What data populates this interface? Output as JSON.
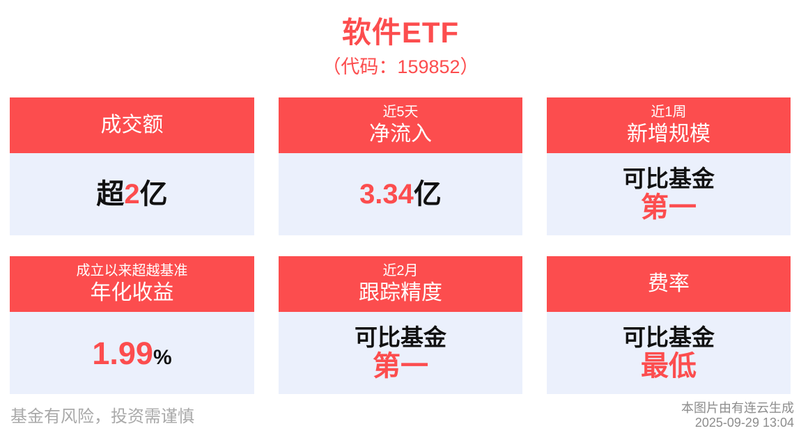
{
  "colors": {
    "accent_red": "#FC4D4E",
    "card_body_bg": "#EBF0FC",
    "text_black": "#111111",
    "disclaimer_gray": "#A9A9A9",
    "source_gray": "#8D8D8D"
  },
  "header": {
    "title": "软件ETF",
    "subtitle": "（代码：159852）"
  },
  "cards": [
    {
      "name": "turnover",
      "header_main": "成交额",
      "value_prefix": "超",
      "value_highlight": "2",
      "value_suffix": "亿"
    },
    {
      "name": "net-inflow",
      "header_top": "近5天",
      "header_main": "净流入",
      "value_highlight": "3.34",
      "value_suffix": "亿"
    },
    {
      "name": "new-scale",
      "header_top": "近1周",
      "header_main": "新增规模",
      "value_line1": "可比基金",
      "value_line2": "第一"
    },
    {
      "name": "annualized-return",
      "header_top": "成立以来超越基准",
      "header_main": "年化收益",
      "value_highlight": "1.99",
      "value_suffix": "%"
    },
    {
      "name": "tracking-precision",
      "header_top": "近2月",
      "header_main": "跟踪精度",
      "value_line1": "可比基金",
      "value_line2": "第一"
    },
    {
      "name": "fee-rate",
      "header_main": "费率",
      "value_line1": "可比基金",
      "value_line2": "最低"
    }
  ],
  "footer": {
    "disclaimer": "基金有风险，投资需谨慎",
    "source": "本图片由有连云生成",
    "generated_at": "2025-09-29 13:04"
  }
}
